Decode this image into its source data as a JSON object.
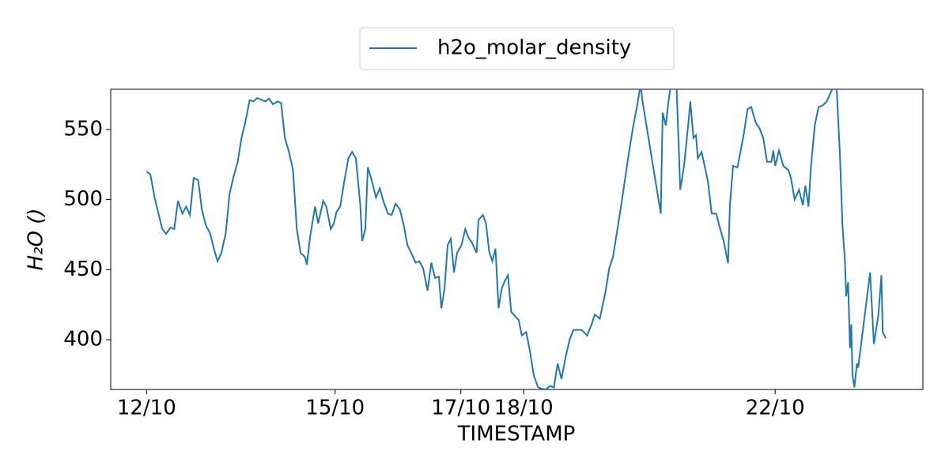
{
  "chart_data": {
    "type": "line",
    "xlabel": "TIMESTAMP",
    "ylabel": "H₂O ()",
    "legend": "upper center",
    "x": [
      12.0,
      12.06,
      12.13,
      12.19,
      12.25,
      12.31,
      12.38,
      12.44,
      12.5,
      12.57,
      12.63,
      12.69,
      12.75,
      12.82,
      12.88,
      12.94,
      13.01,
      13.07,
      13.13,
      13.19,
      13.26,
      13.32,
      13.38,
      13.45,
      13.51,
      13.57,
      13.64,
      13.7,
      13.76,
      13.89,
      13.95,
      14.01,
      14.08,
      14.14,
      14.2,
      14.26,
      14.33,
      14.39,
      14.45,
      14.52,
      14.55,
      14.6,
      14.68,
      14.73,
      14.81,
      14.86,
      14.93,
      14.98,
      15.02,
      15.08,
      15.14,
      15.21,
      15.27,
      15.33,
      15.4,
      15.43,
      15.48,
      15.52,
      15.58,
      15.65,
      15.71,
      15.77,
      15.84,
      15.9,
      15.96,
      16.03,
      16.09,
      16.15,
      16.21,
      16.28,
      16.34,
      16.4,
      16.47,
      16.53,
      16.59,
      16.65,
      16.69,
      16.74,
      16.79,
      16.84,
      16.89,
      16.94,
      17.01,
      17.07,
      17.12,
      17.18,
      17.25,
      17.28,
      17.35,
      17.4,
      17.45,
      17.5,
      17.55,
      17.6,
      17.65,
      17.7,
      17.75,
      17.8,
      17.86,
      17.92,
      17.97,
      18.04,
      18.1,
      18.16,
      18.23,
      18.29,
      18.35,
      18.42,
      18.48,
      18.54,
      18.6,
      18.67,
      18.73,
      18.79,
      18.92,
      19.01,
      19.08,
      19.13,
      19.21,
      19.3,
      19.36,
      19.42,
      19.48,
      19.55,
      19.61,
      19.67,
      19.74,
      19.8,
      19.86,
      19.89,
      20.18,
      20.21,
      20.26,
      20.3,
      20.34,
      20.43,
      20.49,
      20.55,
      20.62,
      20.65,
      20.7,
      20.74,
      20.77,
      20.83,
      20.93,
      20.99,
      21.06,
      21.12,
      21.18,
      21.25,
      21.28,
      21.33,
      21.4,
      21.5,
      21.56,
      21.62,
      21.69,
      21.75,
      21.81,
      21.87,
      21.94,
      21.97,
      22.0,
      22.06,
      22.13,
      22.21,
      22.25,
      22.31,
      22.38,
      22.44,
      22.48,
      22.53,
      22.57,
      22.63,
      22.69,
      22.75,
      22.82,
      22.97,
      22.98,
      23.03,
      23.07,
      23.11,
      23.13,
      23.16,
      23.19,
      23.21,
      23.23,
      23.26,
      23.3,
      23.32,
      23.51,
      23.57,
      23.64,
      23.69,
      23.71,
      23.76
    ],
    "series": [
      {
        "name": "h2o_molar_density",
        "color": "#1f77b4",
        "values": [
          520,
          518,
          501,
          490,
          479,
          475.5,
          480,
          479,
          499,
          490,
          495,
          489,
          515.5,
          514,
          493,
          482,
          476,
          465,
          456,
          462,
          476,
          504,
          515.5,
          527,
          544,
          555,
          571,
          570,
          572.5,
          570,
          572,
          568,
          570,
          569,
          544,
          535,
          521,
          479,
          462,
          459,
          453.5,
          473,
          495,
          483,
          499,
          495,
          479,
          483,
          491,
          495,
          511.5,
          529.5,
          534,
          529.5,
          496,
          470.5,
          479,
          523,
          514,
          501.5,
          508,
          498.5,
          490,
          489,
          497,
          493,
          482,
          467.5,
          462,
          455,
          456,
          451,
          435,
          455,
          444,
          445,
          422.5,
          436.5,
          467.5,
          472,
          448,
          462,
          467.5,
          479,
          473,
          469,
          462,
          485.5,
          489,
          483,
          463,
          456,
          465,
          422.5,
          436.5,
          442,
          446,
          420,
          417,
          414,
          403,
          405.5,
          391.5,
          374.5,
          366,
          365,
          364.5,
          367,
          366,
          383,
          372,
          388.5,
          400,
          407,
          407,
          403,
          411,
          418,
          415,
          434,
          451,
          459,
          476,
          496,
          514,
          532.5,
          552,
          566,
          582,
          570,
          490,
          562,
          553,
          569,
          582,
          582,
          507,
          524,
          555,
          570,
          544,
          546,
          529.5,
          534,
          513,
          490,
          490,
          480,
          470.5,
          454.5,
          496,
          524,
          523,
          546.5,
          564.5,
          566,
          555,
          551,
          544,
          527,
          527,
          535,
          524,
          535,
          524,
          521,
          515.5,
          500,
          507,
          496,
          510,
          495,
          524,
          553,
          566,
          567,
          570,
          585,
          577.5,
          532,
          482,
          456,
          431,
          441,
          394,
          411,
          374.5,
          366,
          383,
          380,
          448,
          397,
          417,
          446,
          405.5,
          401
        ]
      }
    ],
    "xlim": [
      11.43,
      24.35
    ],
    "xticks": [
      {
        "value": 12,
        "label": "12/10"
      },
      {
        "value": 15,
        "label": "15/10"
      },
      {
        "value": 17,
        "label": "17/10"
      },
      {
        "value": 18,
        "label": "18/10"
      },
      {
        "value": 22,
        "label": "22/10"
      }
    ],
    "ylim": [
      364.5,
      578.7
    ],
    "yticks": [
      400,
      450,
      500,
      550
    ]
  }
}
